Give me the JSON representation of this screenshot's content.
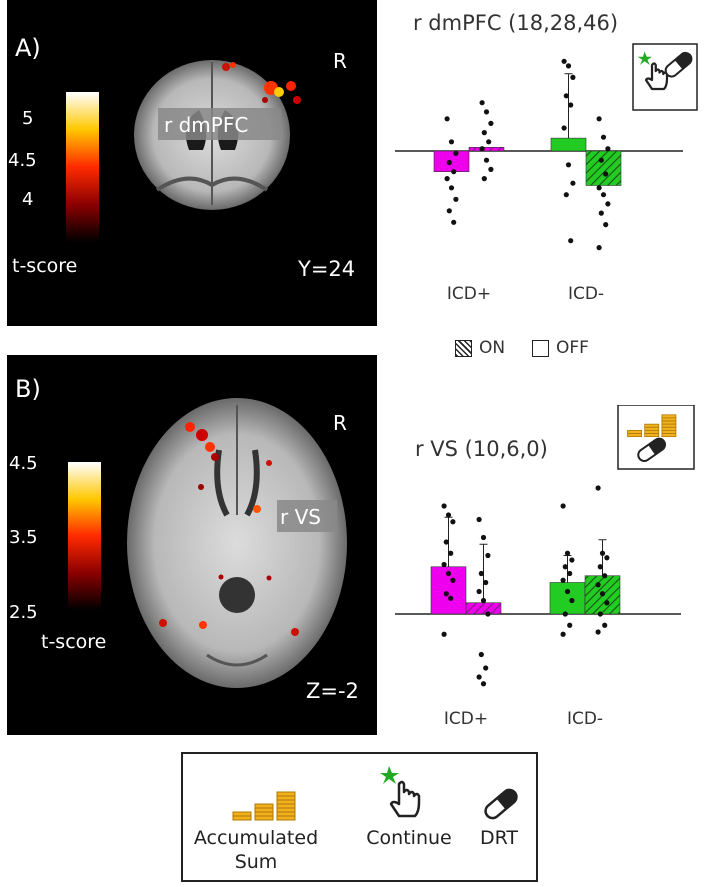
{
  "panel_a": {
    "label": "A)",
    "orientation": "R",
    "roi_label": "r dmPFC",
    "slice_label": "Y=24",
    "colorbar_ticks": [
      "5",
      "4.5",
      "4"
    ],
    "colorbar_title": "t-score"
  },
  "panel_b": {
    "label": "B)",
    "orientation": "R",
    "roi_label": "r VS",
    "slice_label": "Z=-2",
    "colorbar_ticks": [
      "4.5",
      "3.5",
      "2.5"
    ],
    "colorbar_title": "t-score"
  },
  "colors": {
    "icd_plus": "#ee00ee",
    "icd_minus": "#22cc22",
    "coin": "#f0b020",
    "star": "#22aa22"
  },
  "legend_mid": {
    "on_label": "ON",
    "off_label": "OFF"
  },
  "legend_bottom": {
    "items": [
      {
        "icon": "coin-stack-icon",
        "label_line1": "Accumulated",
        "label_line2": "Sum"
      },
      {
        "icon": "hand-click-icon",
        "label_line1": "Continue",
        "label_line2": ""
      },
      {
        "icon": "pill-icon",
        "label_line1": "DRT",
        "label_line2": ""
      }
    ]
  },
  "chart_data": [
    {
      "type": "bar",
      "title": "r dmPFC (18,28,46)",
      "categories": [
        "ICD+",
        "ICD-"
      ],
      "series": [
        {
          "name": "OFF",
          "values": [
            -0.45,
            0.28
          ],
          "errors": [
            null,
            1.4
          ]
        },
        {
          "name": "ON",
          "values": [
            0.08,
            -0.75
          ],
          "errors": [
            null,
            null
          ]
        }
      ],
      "ylim": [
        -2.1,
        2.0
      ],
      "points": {
        "icd_plus_off": [
          0.7,
          0.2,
          -0.05,
          -0.25,
          -0.45,
          -0.6,
          -0.8,
          -1.05,
          -1.3,
          -1.55
        ],
        "icd_plus_on": [
          1.05,
          0.85,
          0.6,
          0.4,
          0.2,
          0.05,
          -0.2,
          -0.4,
          -0.6
        ],
        "icd_minus_off": [
          1.95,
          1.85,
          1.6,
          1.2,
          1.0,
          0.5,
          -0.3,
          -0.7,
          -0.95,
          -1.95
        ],
        "icd_minus_on": [
          0.7,
          0.3,
          0.05,
          -0.2,
          -0.5,
          -0.8,
          -0.95,
          -1.15,
          -1.35,
          -1.6,
          -2.1
        ]
      },
      "icon_box": "hand-click-and-pill"
    },
    {
      "type": "bar",
      "title": "r VS (10,6,0)",
      "categories": [
        "ICD+",
        "ICD-"
      ],
      "series": [
        {
          "name": "OFF",
          "values": [
            1.05,
            0.7
          ],
          "errors": [
            1.1,
            0.6
          ]
        },
        {
          "name": "ON",
          "values": [
            0.25,
            0.85
          ],
          "errors": [
            1.3,
            0.8
          ]
        }
      ],
      "ylim": [
        -1.6,
        3.0
      ],
      "points": {
        "icd_plus_off": [
          2.4,
          2.2,
          2.05,
          1.6,
          1.35,
          1.1,
          0.9,
          0.75,
          0.45,
          0.35,
          -0.45
        ],
        "icd_plus_on": [
          2.1,
          1.7,
          1.3,
          0.9,
          0.7,
          0.5,
          0.3,
          0.0,
          -0.9,
          -1.2,
          -1.4,
          -1.55
        ],
        "icd_minus_off": [
          2.4,
          1.35,
          1.2,
          1.05,
          0.9,
          0.75,
          0.5,
          0.3,
          0.0,
          -0.25,
          -0.45
        ],
        "icd_minus_on": [
          2.8,
          1.35,
          1.25,
          1.05,
          0.85,
          0.65,
          0.45,
          0.25,
          0.0,
          -0.25,
          -0.4
        ]
      },
      "icon_box": "coin-stack-and-pill"
    }
  ]
}
